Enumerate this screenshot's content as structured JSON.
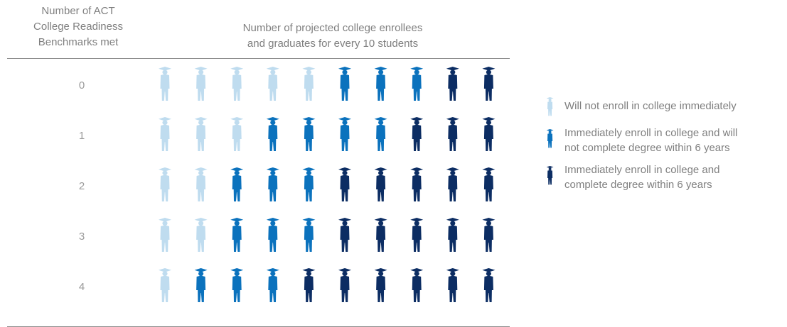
{
  "header": {
    "left_lines": [
      "Number of ACT",
      "College Readiness",
      "Benchmarks met"
    ],
    "right_lines": [
      "Number of projected college enrollees",
      "and graduates for every 10 students"
    ]
  },
  "colors": {
    "not_enroll": "#bfdcef",
    "enroll_no_degree": "#0b72bd",
    "enroll_degree": "#0c2d63"
  },
  "icon_name": "graduate-figure-icon",
  "legend": [
    {
      "key": "not_enroll",
      "lines": [
        "Will not enroll in college immediately"
      ]
    },
    {
      "key": "enroll_no_degree",
      "lines": [
        "Immediately enroll in college and will",
        "not complete degree within 6 years"
      ]
    },
    {
      "key": "enroll_degree",
      "lines": [
        "Immediately enroll in college and",
        "complete degree within 6 years"
      ]
    }
  ],
  "chart_data": {
    "type": "pictograph",
    "students_per_row": 10,
    "row_axis_title": "Number of ACT College Readiness Benchmarks met",
    "column_title": "Number of projected college enrollees and graduates for every 10 students",
    "categories": [
      "0",
      "1",
      "2",
      "3",
      "4"
    ],
    "series": [
      {
        "name": "Will not enroll in college immediately",
        "key": "not_enroll",
        "values": [
          5,
          3,
          2,
          2,
          1
        ]
      },
      {
        "name": "Immediately enroll in college and will not complete degree within 6 years",
        "key": "enroll_no_degree",
        "values": [
          3,
          4,
          3,
          3,
          3
        ]
      },
      {
        "name": "Immediately enroll in college and complete degree within 6 years",
        "key": "enroll_degree",
        "values": [
          2,
          3,
          5,
          5,
          6
        ]
      }
    ]
  }
}
